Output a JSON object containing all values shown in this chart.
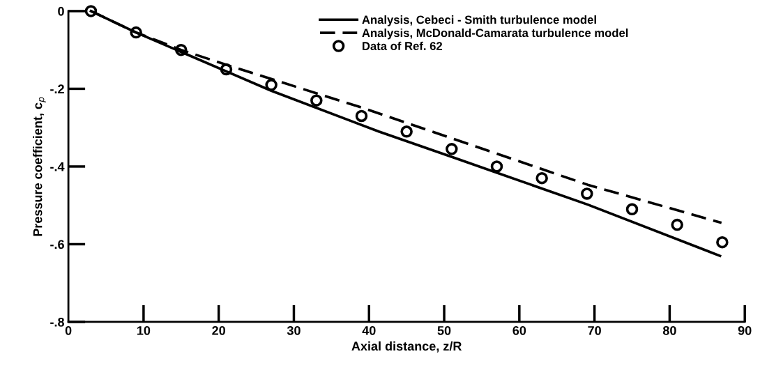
{
  "chart_data": {
    "type": "line",
    "xlabel": "Axial distance, z/R",
    "ylabel": "Pressure coefficient, c$_{p}$",
    "xlim": [
      0,
      90
    ],
    "ylim": [
      -0.8,
      0
    ],
    "xticks": [
      0,
      10,
      20,
      30,
      40,
      50,
      60,
      70,
      80,
      90
    ],
    "yticks": [
      {
        "value": -0.8,
        "label": "-.8"
      },
      {
        "value": -0.6,
        "label": "-.6"
      },
      {
        "value": -0.4,
        "label": "-.4"
      },
      {
        "value": -0.2,
        "label": "-.2"
      },
      0
    ],
    "grid": false,
    "legend": "top",
    "series": [
      {
        "name": "Analysis, Cebeci - Smith turbulence model",
        "line_style": "solid",
        "marker": "none",
        "color": "#000000",
        "x": [
          3,
          9,
          15,
          21,
          27,
          41.3,
          51.1,
          69.1,
          86.7
        ],
        "values": [
          0,
          -0.055,
          -0.105,
          -0.155,
          -0.205,
          -0.31,
          -0.376,
          -0.498,
          -0.63
        ]
      },
      {
        "name": "Analysis, McDonald-Camarata turbulence model",
        "line_style": "dashed",
        "marker": "none",
        "color": "#000000",
        "x": [
          3,
          9,
          15,
          21,
          39.3,
          69.1,
          86.9
        ],
        "values": [
          0,
          -0.055,
          -0.1,
          -0.138,
          -0.25,
          -0.447,
          -0.545
        ]
      },
      {
        "name": "Data of Ref. 62",
        "type": "scatter",
        "marker": "circle",
        "color": "#000000",
        "x": [
          3,
          9,
          15,
          21,
          27,
          33,
          39,
          45,
          51,
          57,
          63,
          69,
          75,
          81,
          87
        ],
        "values": [
          0,
          -0.055,
          -0.1,
          -0.15,
          -0.19,
          -0.23,
          -0.27,
          -0.31,
          -0.355,
          -0.4,
          -0.43,
          -0.47,
          -0.51,
          -0.55,
          -0.595
        ]
      }
    ]
  }
}
